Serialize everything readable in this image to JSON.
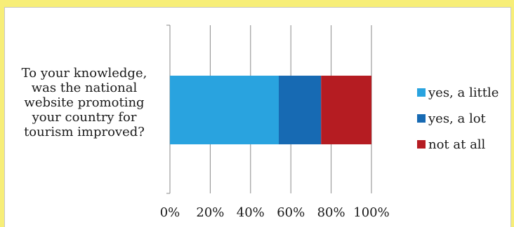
{
  "chart_data": {
    "type": "bar",
    "orientation": "horizontal",
    "stacked": "percent",
    "categories": [
      "To your knowledge, was the national website promoting your country for tourism improved?"
    ],
    "category_lines": [
      "To your knowledge,",
      "was the national",
      "website promoting",
      "your country for",
      "tourism improved?"
    ],
    "series": [
      {
        "name": "yes, a little",
        "values": [
          54
        ],
        "color": "#29a3df"
      },
      {
        "name": "yes, a lot",
        "values": [
          21
        ],
        "color": "#176ab3"
      },
      {
        "name": "not at all",
        "values": [
          25
        ],
        "color": "#b51c22"
      }
    ],
    "xlim": [
      0,
      100
    ],
    "xticks": [
      "0%",
      "20%",
      "40%",
      "60%",
      "80%",
      "100%"
    ],
    "xlabel": "",
    "ylabel": "",
    "grid": true,
    "legend_position": "right"
  },
  "colors": {
    "background": "#f7ee78",
    "plot_background": "#ffffff",
    "gridline": "#8a8a8a"
  }
}
